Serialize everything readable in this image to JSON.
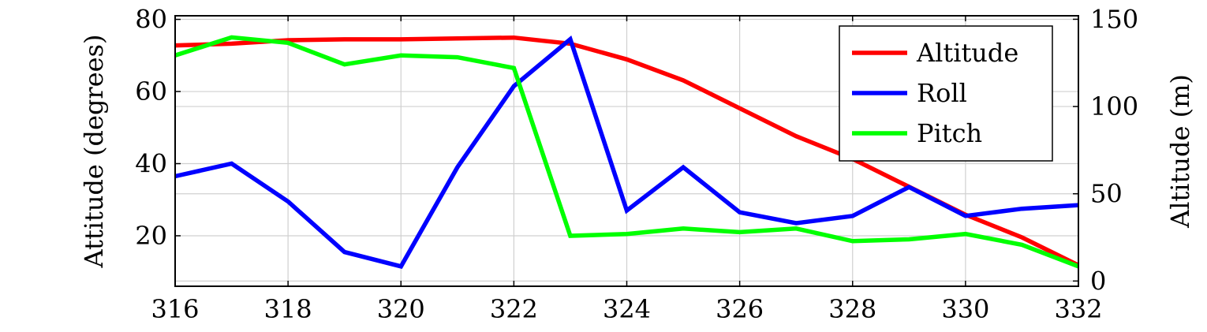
{
  "chart_data": {
    "type": "line",
    "xlabel": "",
    "ylabel_left": "Attitude (degrees)",
    "ylabel_right": "Altitude (m)",
    "xlim": [
      316,
      332
    ],
    "ylim_left": [
      6,
      81
    ],
    "ylim_right": [
      -3,
      152
    ],
    "x_ticks": [
      316,
      318,
      320,
      322,
      324,
      326,
      328,
      330,
      332
    ],
    "y_left_ticks": [
      20,
      40,
      60,
      80
    ],
    "y_right_ticks": [
      0,
      50,
      100,
      150
    ],
    "grid": true,
    "legend_position": "top-right",
    "x": [
      316,
      317,
      318,
      319,
      320,
      321,
      322,
      323,
      324,
      325,
      326,
      327,
      328,
      329,
      330,
      331,
      332
    ],
    "series": [
      {
        "name": "Altitude",
        "color": "#ff0000",
        "axis": "right",
        "values": [
          135,
          136,
          138,
          138.5,
          138.5,
          139,
          139.5,
          136,
          127,
          115,
          99,
          83,
          70,
          54,
          38,
          25,
          9
        ]
      },
      {
        "name": "Roll",
        "color": "#0000ff",
        "axis": "left",
        "values": [
          36.5,
          40,
          29.5,
          15.5,
          11.5,
          39,
          61.5,
          74.5,
          27,
          39,
          26.5,
          23.5,
          25.5,
          33.5,
          25.5,
          27.5,
          28.5
        ]
      },
      {
        "name": "Pitch",
        "color": "#00ff00",
        "axis": "left",
        "values": [
          70,
          75,
          73.5,
          67.5,
          70,
          69.5,
          66.5,
          20,
          20.5,
          22,
          21,
          22,
          18.5,
          19,
          20.5,
          17.5,
          11.5
        ]
      }
    ]
  }
}
